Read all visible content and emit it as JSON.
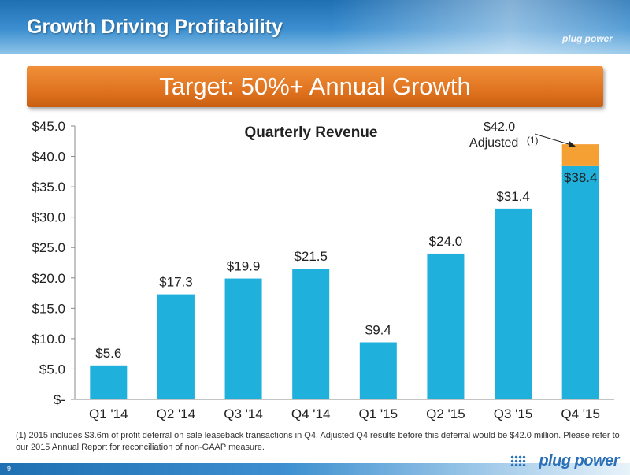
{
  "slide": {
    "title": "Growth Driving Profitability",
    "banner": "Target: 50%+ Annual Growth",
    "footnote": "(1) 2015 includes $3.6m of profit deferral on sale leaseback transactions in Q4.  Adjusted Q4 results before this deferral would be $42.0 million. Please refer to our 2015 Annual Report for reconciliation of non-GAAP measure.",
    "page_number": "9",
    "logo_text": "plug power",
    "header_logo_text": "plug power"
  },
  "colors": {
    "bar": "#1fb0dc",
    "adjusted": "#f5a033",
    "banner": "#e0731f",
    "header": "#2a7bc2"
  },
  "chart_data": {
    "type": "bar",
    "title": "Quarterly Revenue",
    "categories": [
      "Q1 '14",
      "Q2 '14",
      "Q3 '14",
      "Q4 '14",
      "Q1 '15",
      "Q2 '15",
      "Q3 '15",
      "Q4 '15"
    ],
    "values": [
      5.6,
      17.3,
      19.9,
      21.5,
      9.4,
      24.0,
      31.4,
      38.4
    ],
    "value_labels": [
      "$5.6",
      "$17.3",
      "$19.9",
      "$21.5",
      "$9.4",
      "$24.0",
      "$31.4",
      "$38.4"
    ],
    "adjusted": {
      "category": "Q4 '15",
      "base": 38.4,
      "value": 42.0,
      "label_value": "$42.0",
      "label_text": "Adjusted",
      "label_note": "(1)"
    },
    "ylim": [
      0,
      45
    ],
    "yticks": [
      0,
      5,
      10,
      15,
      20,
      25,
      30,
      35,
      40,
      45
    ],
    "ytick_labels": [
      "$-",
      "$5.0",
      "$10.0",
      "$15.0",
      "$20.0",
      "$25.0",
      "$30.0",
      "$35.0",
      "$40.0",
      "$45.0"
    ],
    "grid": false,
    "legend": "none"
  }
}
